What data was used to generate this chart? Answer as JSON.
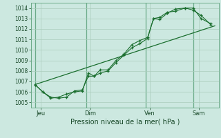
{
  "background_color": "#cce8e0",
  "grid_color": "#aaccbb",
  "line_color": "#1a6e2e",
  "xlabel": "Pression niveau de la mer( hPa )",
  "ylim": [
    1004.5,
    1014.5
  ],
  "yticks": [
    1005,
    1006,
    1007,
    1008,
    1009,
    1010,
    1011,
    1012,
    1013,
    1014
  ],
  "xtick_labels": [
    "Jeu",
    "Dim",
    "Ven",
    "Sam"
  ],
  "xtick_positions": [
    0.5,
    3.0,
    6.0,
    8.5
  ],
  "vline_positions": [
    0.2,
    2.8,
    5.8,
    8.2
  ],
  "xlim": [
    0.0,
    9.5
  ],
  "line1_x": [
    0.2,
    0.6,
    1.0,
    1.4,
    1.8,
    2.2,
    2.6,
    2.9,
    3.2,
    3.5,
    3.9,
    4.3,
    4.7,
    5.1,
    5.5,
    5.9,
    6.2,
    6.5,
    6.9,
    7.3,
    7.8,
    8.2,
    8.6,
    9.1
  ],
  "line1_y": [
    1006.7,
    1006.0,
    1005.4,
    1005.5,
    1005.8,
    1006.0,
    1006.1,
    1007.8,
    1007.5,
    1007.8,
    1008.0,
    1008.8,
    1009.5,
    1010.2,
    1010.6,
    1011.1,
    1013.0,
    1013.1,
    1013.6,
    1013.7,
    1014.0,
    1014.0,
    1013.0,
    1012.5
  ],
  "line2_x": [
    0.2,
    0.6,
    1.0,
    1.4,
    1.8,
    2.2,
    2.6,
    2.9,
    3.2,
    3.5,
    3.9,
    4.3,
    4.7,
    5.1,
    5.5,
    5.9,
    6.2,
    6.5,
    6.9,
    7.3,
    7.8,
    8.2,
    8.6,
    9.1
  ],
  "line2_y": [
    1006.7,
    1006.0,
    1005.5,
    1005.4,
    1005.5,
    1006.1,
    1006.2,
    1007.5,
    1007.5,
    1008.1,
    1008.1,
    1009.0,
    1009.6,
    1010.5,
    1010.9,
    1011.2,
    1013.0,
    1012.9,
    1013.5,
    1013.9,
    1014.0,
    1013.8,
    1013.3,
    1012.4
  ],
  "trend_x": [
    0.2,
    9.3
  ],
  "trend_y": [
    1006.7,
    1012.3
  ]
}
